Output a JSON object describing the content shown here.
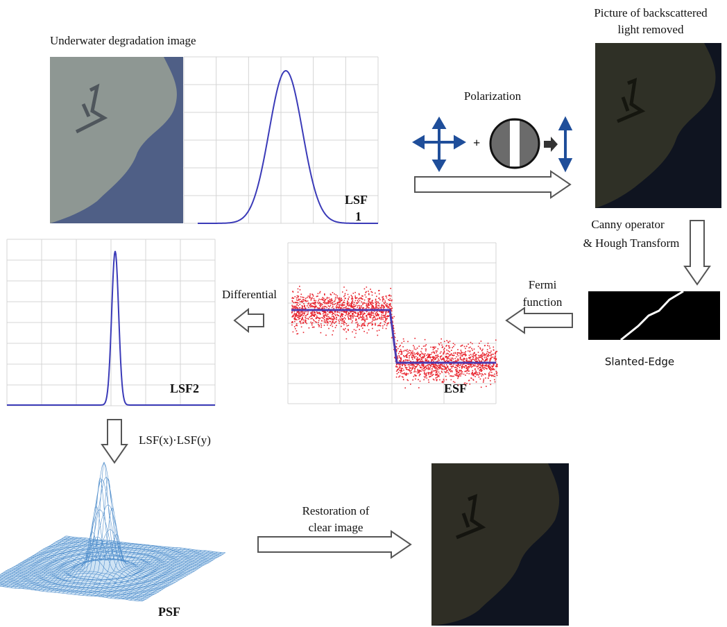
{
  "labels": {
    "underwater_image": "Underwater degradation image",
    "lsf1": [
      "LSF",
      "1"
    ],
    "polarization": "Polarization",
    "backscatter_removed": [
      "Picture of backscattered",
      "light removed"
    ],
    "canny_hough": [
      "Canny operator",
      "& Hough Transform"
    ],
    "fermi": [
      "Fermi",
      "function"
    ],
    "slanted_edge": "Slanted-Edge",
    "esf": "ESF",
    "differential": "Differential",
    "lsf2": "LSF2",
    "lsf_product": "LSF(x)·LSF(y)",
    "psf": "PSF",
    "restoration": [
      "Restoration of",
      "clear image"
    ]
  }
}
